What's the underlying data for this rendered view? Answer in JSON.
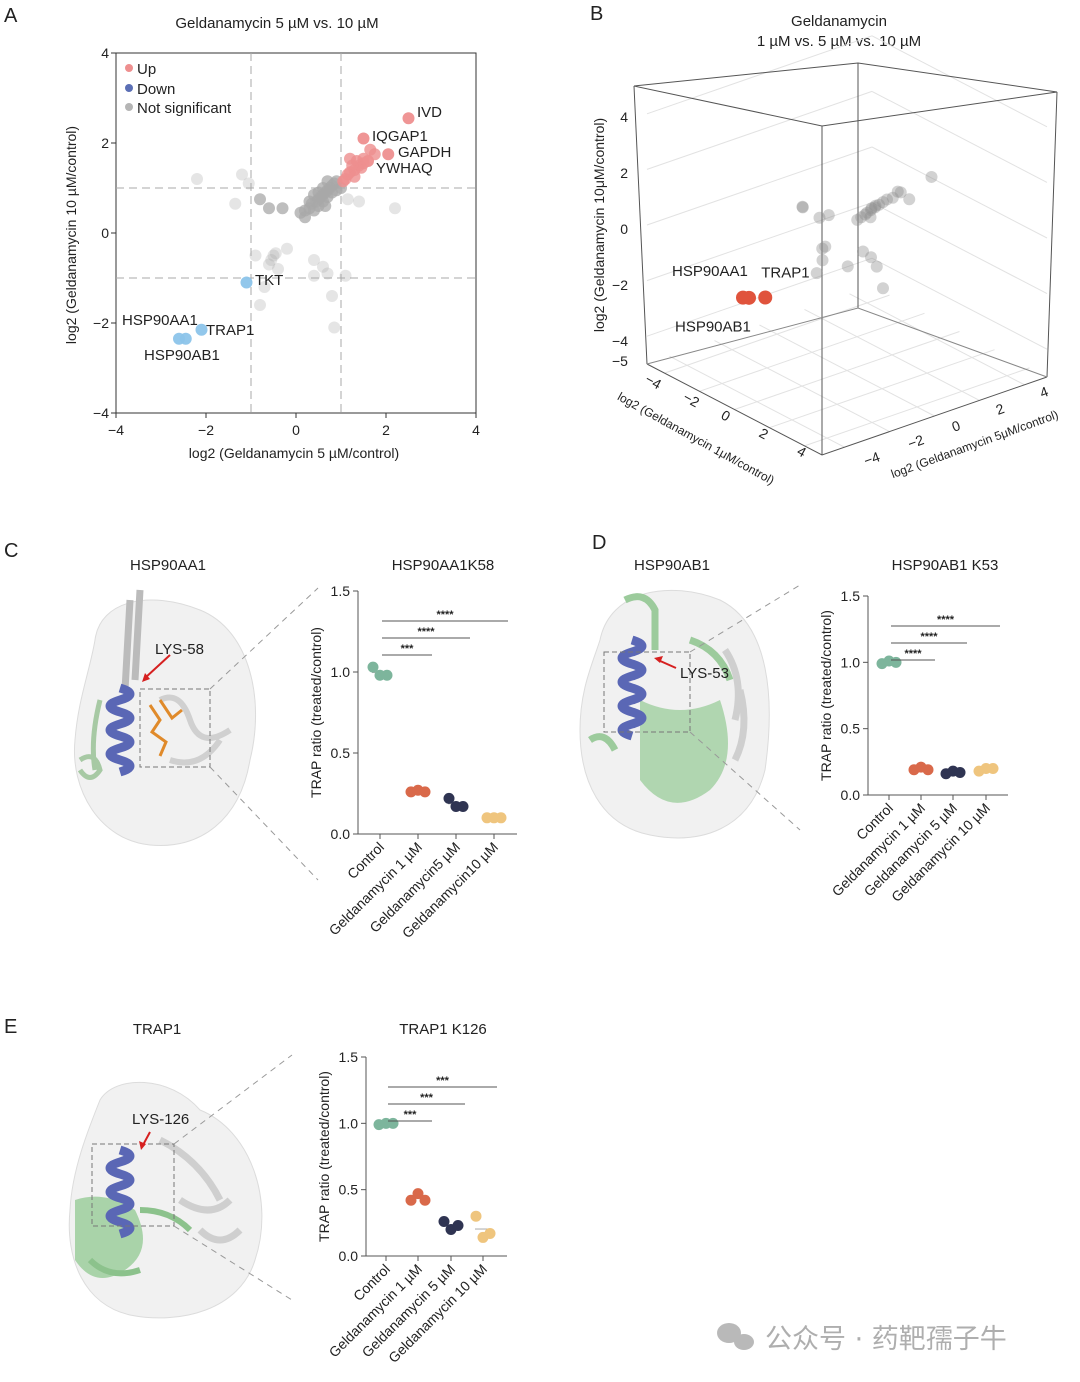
{
  "panels": {
    "a": "A",
    "b": "B",
    "c": "C",
    "d": "D",
    "e": "E"
  },
  "colors": {
    "up": "#ee8f8f",
    "down": "#8cc4ea",
    "ns": "#a8a8a8",
    "highlight3d": "#e0533c",
    "control": "#7db59c",
    "g1": "#d9694a",
    "g5": "#2f3452",
    "g10": "#efc57e"
  },
  "watermark": "公众号 · 药靶孺子牛",
  "chart_data": [
    {
      "id": "A",
      "type": "scatter",
      "title": "Geldanamycin 5 µM vs. 10 µM",
      "xlabel": "log2 (Geldanamycin 5 µM/control)",
      "ylabel": "log2 (Geldanamycin 10 µM/control)",
      "xlim": [
        -4,
        4
      ],
      "ylim": [
        -4,
        4
      ],
      "xticks": [
        "−4",
        "−2",
        "0",
        "2",
        "4"
      ],
      "yticks": [
        "4",
        "2",
        "0",
        "−2",
        "−4"
      ],
      "thresholds": {
        "x": [
          -1,
          1
        ],
        "y": [
          -1,
          1
        ]
      },
      "legend": {
        "placement": "top-left",
        "entries": [
          "Up",
          "Down",
          "Not significant"
        ]
      },
      "series": [
        {
          "name": "Not significant",
          "points": [
            [
              0.1,
              0.45
            ],
            [
              0.2,
              0.5
            ],
            [
              0.3,
              0.55
            ],
            [
              0.35,
              0.65
            ],
            [
              0.45,
              0.7
            ],
            [
              0.5,
              0.75
            ],
            [
              0.55,
              0.8
            ],
            [
              0.6,
              0.85
            ],
            [
              0.65,
              0.9
            ],
            [
              0.7,
              0.95
            ],
            [
              0.75,
              1.0
            ],
            [
              0.8,
              1.05
            ],
            [
              0.85,
              1.1
            ],
            [
              0.9,
              1.15
            ],
            [
              0.4,
              0.5
            ],
            [
              0.5,
              0.6
            ],
            [
              0.6,
              0.7
            ],
            [
              0.7,
              0.8
            ],
            [
              0.8,
              0.9
            ],
            [
              0.3,
              0.7
            ],
            [
              0.5,
              0.9
            ],
            [
              0.6,
              1.0
            ],
            [
              0.7,
              1.15
            ],
            [
              0.2,
              0.35
            ],
            [
              0.9,
              0.95
            ],
            [
              1.0,
              1.0
            ],
            [
              0.4,
              0.85
            ],
            [
              0.65,
              0.6
            ],
            [
              -1.2,
              1.3
            ],
            [
              -2.2,
              1.2
            ],
            [
              -1.05,
              1.1
            ],
            [
              -1.35,
              0.65
            ],
            [
              -0.8,
              0.75
            ],
            [
              -0.6,
              0.55
            ],
            [
              -0.3,
              0.55
            ],
            [
              -0.5,
              -0.5
            ],
            [
              -0.6,
              -0.7
            ],
            [
              -0.4,
              -0.8
            ],
            [
              -0.9,
              -0.5
            ],
            [
              -0.2,
              -0.35
            ],
            [
              -0.7,
              -1.2
            ],
            [
              -0.8,
              -1.6
            ],
            [
              0.4,
              -0.6
            ],
            [
              0.6,
              -0.75
            ],
            [
              0.7,
              -0.9
            ],
            [
              0.4,
              -0.95
            ],
            [
              0.8,
              -1.4
            ],
            [
              1.1,
              -0.95
            ],
            [
              0.85,
              -2.1
            ],
            [
              2.2,
              0.55
            ],
            [
              1.4,
              0.7
            ],
            [
              1.15,
              0.75
            ],
            [
              -0.55,
              -0.6
            ],
            [
              -0.45,
              -0.45
            ]
          ]
        },
        {
          "name": "Up",
          "points": [
            [
              1.1,
              1.2
            ],
            [
              1.2,
              1.35
            ],
            [
              1.3,
              1.4
            ],
            [
              1.4,
              1.5
            ],
            [
              1.5,
              1.55
            ],
            [
              1.35,
              1.6
            ],
            [
              1.2,
              1.65
            ],
            [
              1.45,
              1.45
            ],
            [
              1.25,
              1.5
            ],
            [
              1.65,
              1.85
            ],
            [
              1.75,
              1.75
            ],
            [
              1.15,
              1.3
            ],
            [
              1.3,
              1.25
            ],
            [
              1.5,
              1.65
            ],
            [
              1.05,
              1.15
            ]
          ],
          "labeled": [
            {
              "label": "IVD",
              "x": 2.5,
              "y": 2.55
            },
            {
              "label": "IQGAP1",
              "x": 1.5,
              "y": 2.1
            },
            {
              "label": "GAPDH",
              "x": 2.05,
              "y": 1.75
            },
            {
              "label": "YWHAQ",
              "x": 1.6,
              "y": 1.6
            }
          ]
        },
        {
          "name": "Down",
          "points": [],
          "labeled": [
            {
              "label": "TKT",
              "x": -1.1,
              "y": -1.1
            },
            {
              "label": "HSP90AA1",
              "x": -2.45,
              "y": -2.35
            },
            {
              "label": "HSP90AB1",
              "x": -2.6,
              "y": -2.35
            },
            {
              "label": "TRAP1",
              "x": -2.1,
              "y": -2.15
            }
          ]
        }
      ]
    },
    {
      "id": "B",
      "type": "scatter3d",
      "title": "Geldanamycin",
      "subtitle": "1 µM vs. 5 µM vs. 10 µM",
      "xlabel": "log2 (Geldanamycin 1μM/control)",
      "ylabel": "log2 (Geldanamycin 5μM/control)",
      "zlabel": "log2 (Geldanamycin 10μM/control)",
      "xlim": [
        -5,
        5
      ],
      "ylim": [
        -5,
        5
      ],
      "zlim": [
        -5,
        5
      ],
      "xticks": [
        "−4",
        "−2",
        "0",
        "2",
        "4"
      ],
      "yticks": [
        "−4",
        "−2",
        "0",
        "2",
        "4"
      ],
      "zticks": [
        "4",
        "2",
        "0",
        "−2",
        "−4"
      ],
      "corner_tick": "−5",
      "grid": true,
      "background_points": [
        [
          0.5,
          0.5,
          0.7
        ],
        [
          0.6,
          0.6,
          0.8
        ],
        [
          0.7,
          0.7,
          0.9
        ],
        [
          0.4,
          0.5,
          0.6
        ],
        [
          0.8,
          0.8,
          1.0
        ],
        [
          0.9,
          0.9,
          1.1
        ],
        [
          0.3,
          0.4,
          0.5
        ],
        [
          0.5,
          0.7,
          0.8
        ],
        [
          0.6,
          0.8,
          0.9
        ],
        [
          1.0,
          1.0,
          1.2
        ],
        [
          0.2,
          0.3,
          0.4
        ],
        [
          0.7,
          0.5,
          0.6
        ],
        [
          1.2,
          1.1,
          1.3
        ],
        [
          1.4,
          1.3,
          1.5
        ],
        [
          1.1,
          1.4,
          1.4
        ],
        [
          2.0,
          2.2,
          2.0
        ],
        [
          1.5,
          1.6,
          1.2
        ],
        [
          -1.0,
          -1.2,
          0.9
        ],
        [
          -1.5,
          -0.8,
          0.6
        ],
        [
          -0.8,
          -0.6,
          0.4
        ],
        [
          -0.4,
          -0.5,
          0.6
        ],
        [
          -0.6,
          -0.5,
          -0.6
        ],
        [
          -0.5,
          -0.7,
          -1.0
        ],
        [
          -0.9,
          -0.4,
          -0.8
        ],
        [
          0.4,
          0.4,
          -0.7
        ],
        [
          0.6,
          0.6,
          -0.9
        ],
        [
          0.8,
          0.7,
          -1.2
        ],
        [
          -0.7,
          -0.8,
          -1.5
        ],
        [
          0.9,
          0.9,
          -2.0
        ],
        [
          0.3,
          -0.2,
          -1.1
        ]
      ],
      "highlighted": [
        {
          "label": "HSP90AA1",
          "x": -2.45,
          "y": -2.45,
          "z": -2.5
        },
        {
          "label": "HSP90AB1",
          "x": -2.6,
          "y": -2.6,
          "z": -2.5
        },
        {
          "label": "TRAP1",
          "x": -2.1,
          "y": -2.0,
          "z": -2.5
        }
      ]
    },
    {
      "id": "C",
      "type": "scatter",
      "protein": "HSP90AA1",
      "residue_label": "LYS-58",
      "title": "HSP90AA1K58",
      "ylabel": "TRAP ratio (treated/control)",
      "ylim": [
        0,
        1.5
      ],
      "yticks": [
        "0.0",
        "0.5",
        "1.0",
        "1.5"
      ],
      "categories": [
        "Control",
        "Geldanamycin 1 µM",
        "Geldanamycin5 µM",
        "Geldanamycin10 µM"
      ],
      "values": [
        [
          1.03,
          0.98,
          0.98
        ],
        [
          0.26,
          0.27,
          0.26
        ],
        [
          0.22,
          0.17,
          0.17
        ],
        [
          0.1,
          0.1,
          0.1
        ]
      ],
      "significance": [
        {
          "compare": [
            0,
            1
          ],
          "label": "***"
        },
        {
          "compare": [
            0,
            2
          ],
          "label": "****"
        },
        {
          "compare": [
            0,
            3
          ],
          "label": "****"
        }
      ]
    },
    {
      "id": "D",
      "type": "scatter",
      "protein": "HSP90AB1",
      "residue_label": "LYS-53",
      "title": "HSP90AB1 K53",
      "ylabel": "TRAP ratio (treated/control)",
      "ylim": [
        0,
        1.5
      ],
      "yticks": [
        "0.0",
        "0.5",
        "1.0",
        "1.5"
      ],
      "categories": [
        "Control",
        "Geldanamycin 1 µM",
        "Geldanamycin 5 µM",
        "Geldanamycin 10 µM"
      ],
      "values": [
        [
          0.99,
          1.01,
          1.0
        ],
        [
          0.19,
          0.21,
          0.19
        ],
        [
          0.16,
          0.18,
          0.17
        ],
        [
          0.18,
          0.2,
          0.2
        ]
      ],
      "significance": [
        {
          "compare": [
            0,
            1
          ],
          "label": "****"
        },
        {
          "compare": [
            0,
            2
          ],
          "label": "****"
        },
        {
          "compare": [
            0,
            3
          ],
          "label": "****"
        }
      ]
    },
    {
      "id": "E",
      "type": "scatter",
      "protein": "TRAP1",
      "residue_label": "LYS-126",
      "title": "TRAP1 K126",
      "ylabel": "TRAP ratio (treated/control)",
      "ylim": [
        0,
        1.5
      ],
      "yticks": [
        "0.0",
        "0.5",
        "1.0",
        "1.5"
      ],
      "categories": [
        "Control",
        "Geldanamycin 1 µM",
        "Geldanamycin 5 µM",
        "Geldanamycin 10 µM"
      ],
      "values": [
        [
          0.99,
          1.0,
          1.0
        ],
        [
          0.42,
          0.47,
          0.42
        ],
        [
          0.26,
          0.2,
          0.23
        ],
        [
          0.3,
          0.14,
          0.17
        ]
      ],
      "significance": [
        {
          "compare": [
            0,
            1
          ],
          "label": "***"
        },
        {
          "compare": [
            0,
            2
          ],
          "label": "***"
        },
        {
          "compare": [
            0,
            3
          ],
          "label": "***"
        }
      ]
    }
  ]
}
